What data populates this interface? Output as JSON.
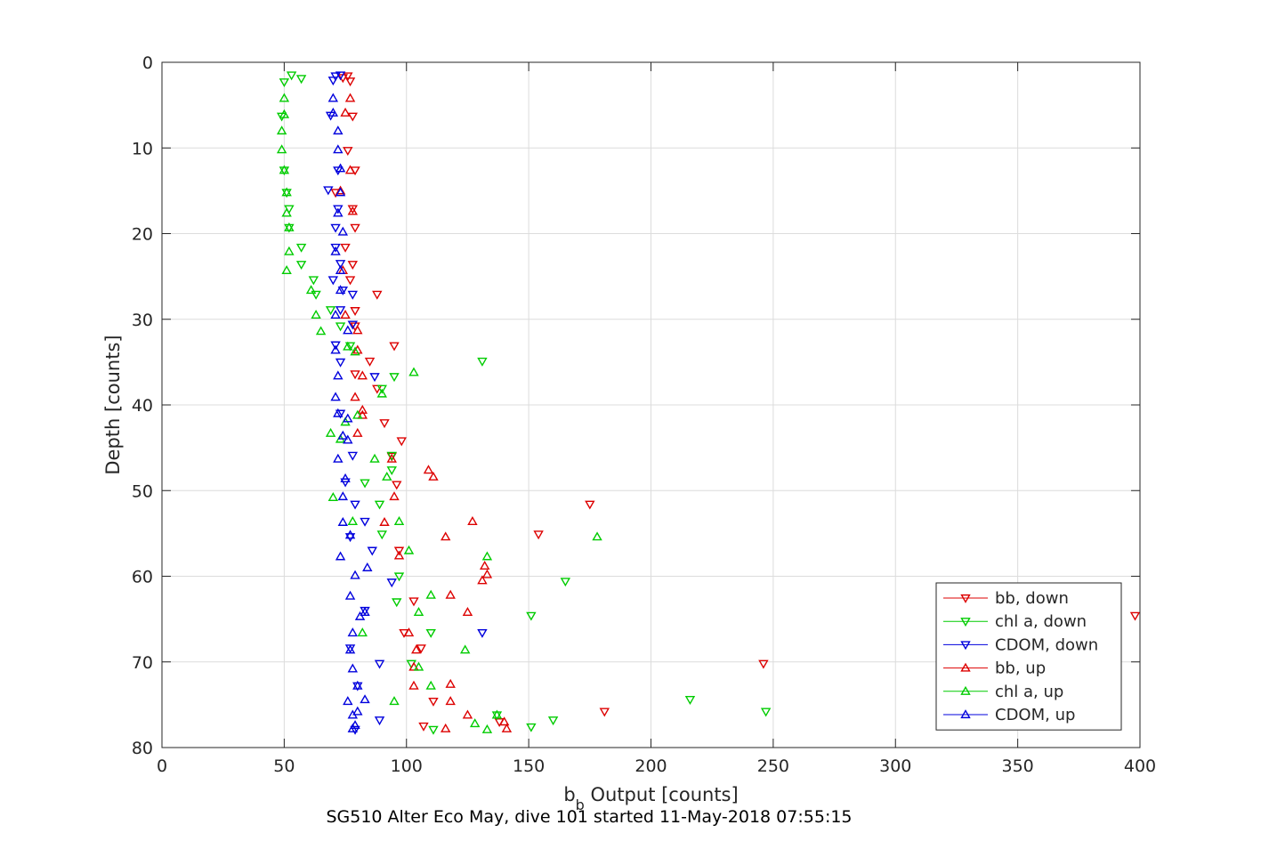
{
  "chart_data": {
    "type": "scatter",
    "title": "",
    "caption": "SG510 Alter Eco May, dive 101 started 11-May-2018 07:55:15",
    "xlabel_main": "b",
    "xlabel_sub": "b",
    "xlabel_rest": " Output [counts]",
    "ylabel": "Depth [counts]",
    "xlim": [
      0,
      400
    ],
    "ylim": [
      80,
      0
    ],
    "y_reversed": true,
    "xticks": [
      0,
      50,
      100,
      150,
      200,
      250,
      300,
      350,
      400
    ],
    "yticks": [
      0,
      10,
      20,
      30,
      40,
      50,
      60,
      70,
      80
    ],
    "grid": true,
    "legend_position": "bottom-right",
    "series": [
      {
        "name": "bb, down",
        "color": "#dd0000",
        "marker": "triangle-down",
        "points": [
          [
            74,
            1.8
          ],
          [
            76,
            1.6
          ],
          [
            77,
            2.2
          ],
          [
            78,
            6.3
          ],
          [
            76,
            10.3
          ],
          [
            79,
            12.6
          ],
          [
            71,
            15.2
          ],
          [
            78,
            17.1
          ],
          [
            79,
            19.3
          ],
          [
            75,
            21.6
          ],
          [
            78,
            23.6
          ],
          [
            77,
            25.4
          ],
          [
            88,
            27.1
          ],
          [
            79,
            29.0
          ],
          [
            79,
            30.8
          ],
          [
            95,
            33.1
          ],
          [
            85,
            34.9
          ],
          [
            79,
            36.4
          ],
          [
            88,
            38.1
          ],
          [
            91,
            42.1
          ],
          [
            98,
            44.2
          ],
          [
            94,
            46.0
          ],
          [
            96,
            49.3
          ],
          [
            175,
            51.6
          ],
          [
            154,
            55.1
          ],
          [
            97,
            57.0
          ],
          [
            103,
            62.9
          ],
          [
            99,
            66.6
          ],
          [
            106,
            68.4
          ],
          [
            246,
            70.2
          ],
          [
            111,
            74.6
          ],
          [
            181,
            75.8
          ],
          [
            107,
            77.5
          ],
          [
            138,
            77.0
          ],
          [
            398,
            64.6
          ]
        ]
      },
      {
        "name": "chl a, down",
        "color": "#00cc00",
        "marker": "triangle-down",
        "points": [
          [
            53,
            1.5
          ],
          [
            57,
            1.9
          ],
          [
            50,
            2.3
          ],
          [
            49,
            6.3
          ],
          [
            50,
            12.6
          ],
          [
            51,
            15.2
          ],
          [
            52,
            17.1
          ],
          [
            52,
            19.3
          ],
          [
            57,
            21.6
          ],
          [
            57,
            23.6
          ],
          [
            62,
            25.4
          ],
          [
            63,
            27.1
          ],
          [
            69,
            28.9
          ],
          [
            73,
            30.8
          ],
          [
            77,
            33.1
          ],
          [
            131,
            34.9
          ],
          [
            95,
            36.7
          ],
          [
            90,
            38.1
          ],
          [
            94,
            45.9
          ],
          [
            94,
            47.6
          ],
          [
            83,
            49.1
          ],
          [
            89,
            51.6
          ],
          [
            90,
            55.1
          ],
          [
            97,
            60.0
          ],
          [
            165,
            60.6
          ],
          [
            151,
            64.6
          ],
          [
            96,
            63.0
          ],
          [
            110,
            66.6
          ],
          [
            102,
            70.2
          ],
          [
            216,
            74.4
          ],
          [
            247,
            75.8
          ],
          [
            160,
            76.8
          ],
          [
            137,
            76.2
          ],
          [
            151,
            77.6
          ],
          [
            111,
            77.9
          ]
        ]
      },
      {
        "name": "CDOM, down",
        "color": "#0000dd",
        "marker": "triangle-down",
        "points": [
          [
            71,
            1.6
          ],
          [
            73,
            1.5
          ],
          [
            70,
            2.1
          ],
          [
            69,
            6.2
          ],
          [
            72,
            12.6
          ],
          [
            68,
            14.9
          ],
          [
            72,
            17.1
          ],
          [
            71,
            19.3
          ],
          [
            71,
            21.6
          ],
          [
            73,
            23.5
          ],
          [
            70,
            25.4
          ],
          [
            74,
            26.6
          ],
          [
            78,
            27.1
          ],
          [
            73,
            28.9
          ],
          [
            78,
            30.6
          ],
          [
            71,
            33.0
          ],
          [
            73,
            35.0
          ],
          [
            87,
            36.7
          ],
          [
            73,
            41.0
          ],
          [
            78,
            45.9
          ],
          [
            75,
            49.0
          ],
          [
            79,
            51.6
          ],
          [
            83,
            53.6
          ],
          [
            77,
            55.4
          ],
          [
            86,
            57.0
          ],
          [
            94,
            60.7
          ],
          [
            83,
            64.0
          ],
          [
            77,
            68.4
          ],
          [
            89,
            70.2
          ],
          [
            131,
            66.6
          ],
          [
            80,
            72.8
          ],
          [
            89,
            76.8
          ],
          [
            79,
            77.9
          ]
        ]
      },
      {
        "name": "bb, up",
        "color": "#dd0000",
        "marker": "triangle-up",
        "points": [
          [
            77,
            4.2
          ],
          [
            75,
            5.9
          ],
          [
            77,
            12.6
          ],
          [
            73,
            15.0
          ],
          [
            78,
            17.4
          ],
          [
            74,
            24.3
          ],
          [
            75,
            29.5
          ],
          [
            80,
            31.3
          ],
          [
            80,
            33.6
          ],
          [
            82,
            36.6
          ],
          [
            79,
            39.1
          ],
          [
            82,
            40.6
          ],
          [
            82,
            41.2
          ],
          [
            80,
            43.3
          ],
          [
            94,
            46.3
          ],
          [
            109,
            47.6
          ],
          [
            111,
            48.4
          ],
          [
            95,
            50.7
          ],
          [
            127,
            53.6
          ],
          [
            91,
            53.7
          ],
          [
            116,
            55.4
          ],
          [
            97,
            57.6
          ],
          [
            132,
            58.8
          ],
          [
            133,
            59.8
          ],
          [
            131,
            60.5
          ],
          [
            118,
            62.2
          ],
          [
            125,
            64.2
          ],
          [
            101,
            66.6
          ],
          [
            104,
            68.6
          ],
          [
            103,
            70.6
          ],
          [
            103,
            72.8
          ],
          [
            118,
            72.6
          ],
          [
            118,
            74.6
          ],
          [
            125,
            76.2
          ],
          [
            140,
            77.0
          ],
          [
            141,
            77.8
          ],
          [
            116,
            77.8
          ]
        ]
      },
      {
        "name": "chl a, up",
        "color": "#00cc00",
        "marker": "triangle-up",
        "points": [
          [
            50,
            4.2
          ],
          [
            50,
            6.1
          ],
          [
            49,
            8.0
          ],
          [
            49,
            10.2
          ],
          [
            50,
            12.6
          ],
          [
            51,
            15.2
          ],
          [
            51,
            17.6
          ],
          [
            52,
            19.3
          ],
          [
            52,
            22.1
          ],
          [
            51,
            24.3
          ],
          [
            61,
            26.6
          ],
          [
            63,
            29.5
          ],
          [
            65,
            31.4
          ],
          [
            76,
            33.2
          ],
          [
            79,
            33.8
          ],
          [
            103,
            36.2
          ],
          [
            90,
            38.7
          ],
          [
            80,
            41.2
          ],
          [
            75,
            42.0
          ],
          [
            69,
            43.3
          ],
          [
            73,
            44.0
          ],
          [
            87,
            46.3
          ],
          [
            92,
            48.4
          ],
          [
            97,
            53.6
          ],
          [
            70,
            50.8
          ],
          [
            78,
            53.6
          ],
          [
            101,
            57.0
          ],
          [
            133,
            57.7
          ],
          [
            178,
            55.4
          ],
          [
            110,
            62.2
          ],
          [
            105,
            64.2
          ],
          [
            82,
            66.6
          ],
          [
            124,
            68.6
          ],
          [
            105,
            70.6
          ],
          [
            110,
            72.8
          ],
          [
            95,
            74.6
          ],
          [
            137,
            76.2
          ],
          [
            128,
            77.2
          ],
          [
            133,
            77.9
          ]
        ]
      },
      {
        "name": "CDOM, up",
        "color": "#0000dd",
        "marker": "triangle-up",
        "points": [
          [
            70,
            4.2
          ],
          [
            70,
            5.9
          ],
          [
            72,
            8.0
          ],
          [
            72,
            10.2
          ],
          [
            73,
            12.4
          ],
          [
            73,
            15.2
          ],
          [
            72,
            17.6
          ],
          [
            74,
            19.8
          ],
          [
            71,
            22.1
          ],
          [
            73,
            24.3
          ],
          [
            73,
            26.6
          ],
          [
            71,
            29.5
          ],
          [
            76,
            31.3
          ],
          [
            71,
            33.6
          ],
          [
            72,
            36.6
          ],
          [
            71,
            39.1
          ],
          [
            72,
            41.0
          ],
          [
            76,
            41.6
          ],
          [
            74,
            43.6
          ],
          [
            76,
            44.1
          ],
          [
            72,
            46.3
          ],
          [
            75,
            48.6
          ],
          [
            74,
            50.7
          ],
          [
            74,
            53.7
          ],
          [
            77,
            55.2
          ],
          [
            73,
            57.7
          ],
          [
            79,
            59.9
          ],
          [
            84,
            59.0
          ],
          [
            77,
            62.3
          ],
          [
            83,
            64.2
          ],
          [
            81,
            64.7
          ],
          [
            78,
            66.6
          ],
          [
            77,
            68.6
          ],
          [
            78,
            70.8
          ],
          [
            80,
            72.8
          ],
          [
            83,
            74.4
          ],
          [
            76,
            74.6
          ],
          [
            80,
            75.8
          ],
          [
            78,
            76.2
          ],
          [
            79,
            77.4
          ],
          [
            78,
            77.8
          ]
        ]
      }
    ]
  }
}
